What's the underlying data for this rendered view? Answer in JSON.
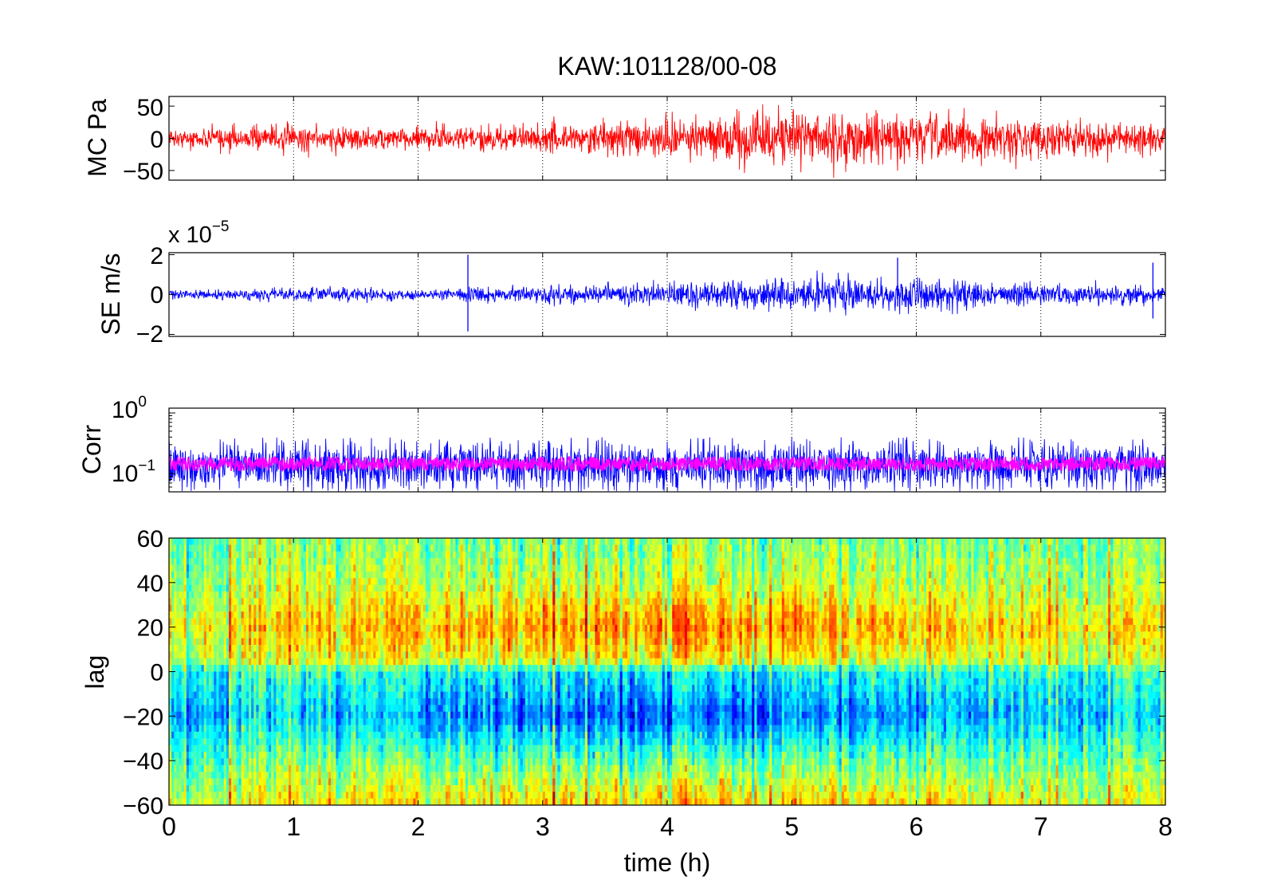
{
  "title": "KAW:101128/00-08",
  "xlabel": "time (h)",
  "x_ticks": [
    "0",
    "1",
    "2",
    "3",
    "4",
    "5",
    "6",
    "7",
    "8"
  ],
  "colors": {
    "mc_trace": "#ff0000",
    "se_trace": "#0000ff",
    "corr_max": "#0000ff",
    "corr_mean": "#ff00ff",
    "axes": "#000000",
    "background": "#ffffff"
  },
  "chart_data": [
    {
      "type": "line",
      "ylabel": "MC Pa",
      "y_ticks": [
        "50",
        "0",
        "−50"
      ],
      "xlim": [
        0,
        8
      ],
      "ylim": [
        -65,
        65
      ],
      "grid": "x-dotted",
      "series": [
        {
          "color": "#ff0000",
          "envelope": [
            {
              "x": 0,
              "y_min": -12,
              "y_max": 12
            },
            {
              "x": 1,
              "y_min": -18,
              "y_max": 18
            },
            {
              "x": 2,
              "y_min": -16,
              "y_max": 16
            },
            {
              "x": 3,
              "y_min": -20,
              "y_max": 20
            },
            {
              "x": 4,
              "y_min": -25,
              "y_max": 25
            },
            {
              "x": 5,
              "y_min": -40,
              "y_max": 40
            },
            {
              "x": 6,
              "y_min": -35,
              "y_max": 35
            },
            {
              "x": 7,
              "y_min": -28,
              "y_max": 28
            },
            {
              "x": 8,
              "y_min": -18,
              "y_max": 18
            }
          ]
        }
      ]
    },
    {
      "type": "line",
      "ylabel": "SE m/s",
      "y_scale_factor": "x 10",
      "y_scale_exponent": "−5",
      "y_ticks": [
        "2",
        "0",
        "−2"
      ],
      "xlim": [
        0,
        8
      ],
      "ylim": [
        -2.1,
        2.1
      ],
      "grid": "x-dotted",
      "series": [
        {
          "color": "#0000ff",
          "envelope": [
            {
              "x": 0,
              "y_min": -0.2,
              "y_max": 0.2
            },
            {
              "x": 1,
              "y_min": -0.3,
              "y_max": 0.3
            },
            {
              "x": 2,
              "y_min": -0.25,
              "y_max": 0.25
            },
            {
              "x": 3,
              "y_min": -0.35,
              "y_max": 0.35
            },
            {
              "x": 4,
              "y_min": -0.5,
              "y_max": 0.5
            },
            {
              "x": 5,
              "y_min": -0.8,
              "y_max": 0.8
            },
            {
              "x": 6,
              "y_min": -0.7,
              "y_max": 0.7
            },
            {
              "x": 7,
              "y_min": -0.5,
              "y_max": 0.5
            },
            {
              "x": 8,
              "y_min": -0.35,
              "y_max": 0.35
            }
          ]
        }
      ],
      "spikes": [
        {
          "x": 2.4,
          "y_min": -1.85,
          "y_max": 2.0
        },
        {
          "x": 5.85,
          "y_min": -0.6,
          "y_max": 1.85
        },
        {
          "x": 7.9,
          "y_min": -1.2,
          "y_max": 1.6
        }
      ]
    },
    {
      "type": "line",
      "ylabel": "Corr",
      "y_scale": "log",
      "y_ticks": [
        {
          "base": "10",
          "exp": "0",
          "value": 1
        },
        {
          "base": "10",
          "exp": "−1",
          "value": 0.1
        }
      ],
      "xlim": [
        0,
        8
      ],
      "ylim": [
        0.05,
        1.2
      ],
      "grid": "x-dotted",
      "series": [
        {
          "color": "#0000ff",
          "band": [
            0.07,
            0.25
          ],
          "peaks": 0.4
        },
        {
          "color": "#ff00ff",
          "band": [
            0.11,
            0.19
          ]
        }
      ]
    },
    {
      "type": "heatmap",
      "ylabel": "lag",
      "y_ticks": [
        "60",
        "40",
        "20",
        "0",
        "−20",
        "−40",
        "−60"
      ],
      "xlim": [
        0,
        8
      ],
      "ylim": [
        -60,
        60
      ],
      "colormap": "jet",
      "lag_profile": [
        {
          "lag": 60,
          "level": 0.5
        },
        {
          "lag": 40,
          "level": 0.55
        },
        {
          "lag": 20,
          "level": 0.66
        },
        {
          "lag": 5,
          "level": 0.58
        },
        {
          "lag": 0,
          "level": 0.42
        },
        {
          "lag": -20,
          "level": 0.32
        },
        {
          "lag": -40,
          "level": 0.48
        },
        {
          "lag": -60,
          "level": 0.62
        }
      ]
    }
  ]
}
